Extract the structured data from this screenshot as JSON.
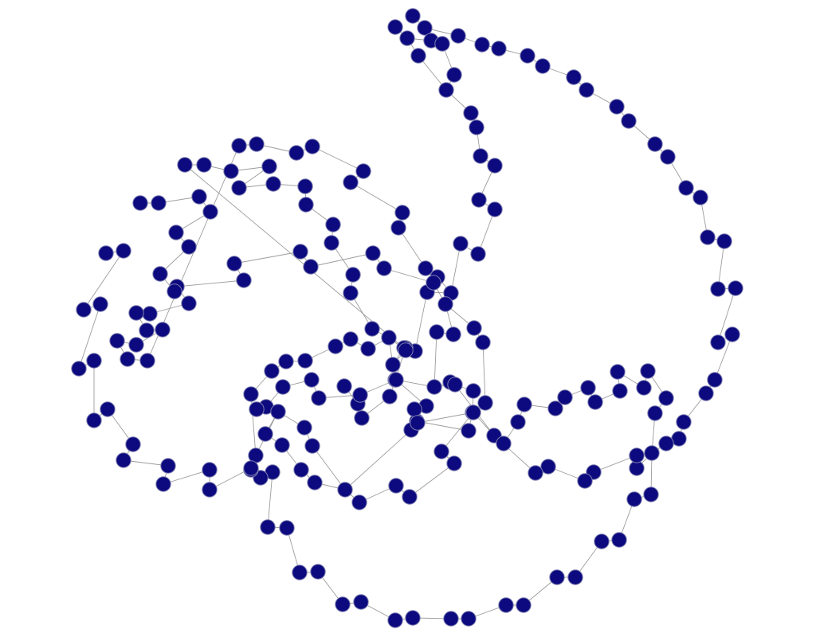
{
  "diagram": {
    "type": "network-graph",
    "node_color": "#0c0a7e",
    "node_stroke": "#7d7db0",
    "edge_color": "#9c9c9c"
  }
}
